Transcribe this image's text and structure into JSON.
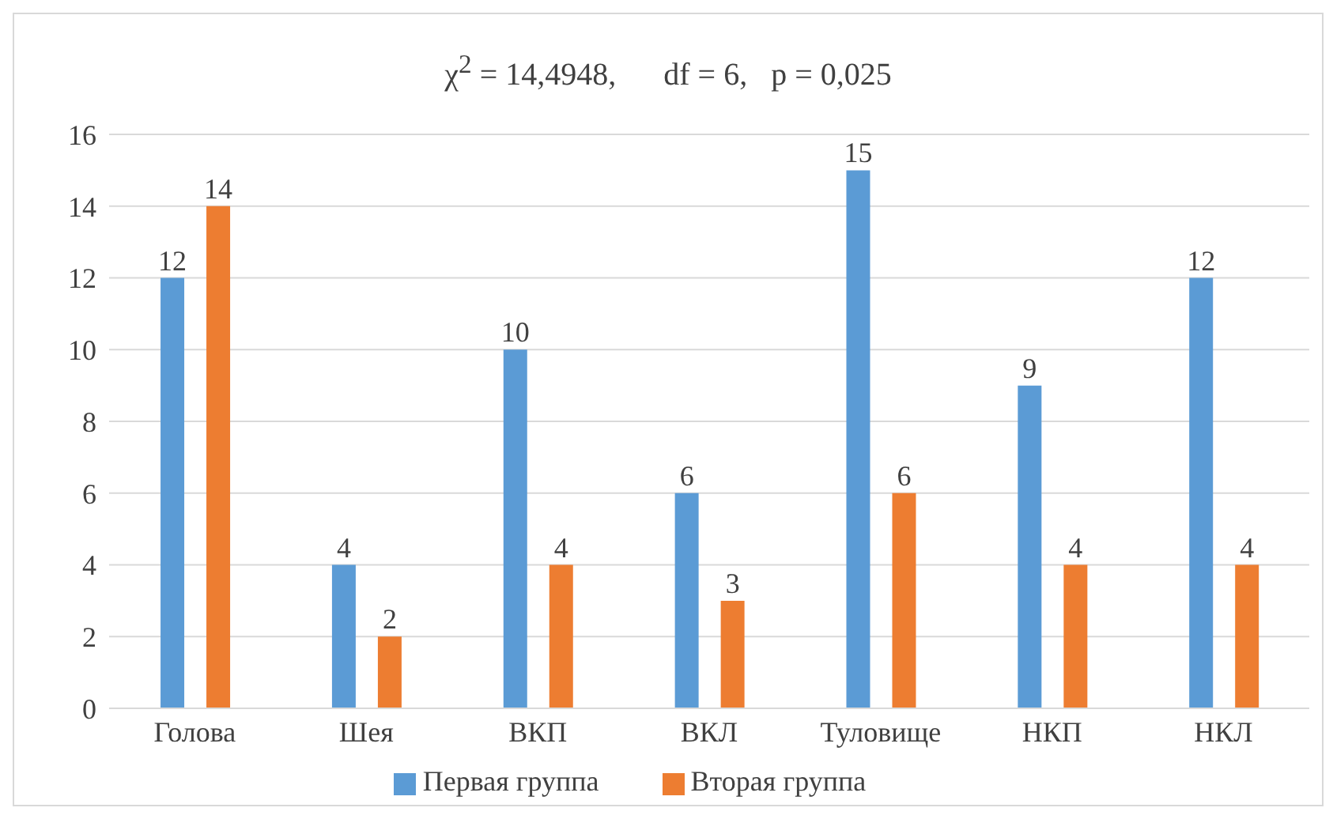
{
  "chart_data": {
    "type": "bar",
    "title": "χ$^{2}$ = 14,4948,      df = 6,   p = 0,025",
    "categories": [
      "Голова",
      "Шея",
      "ВКП",
      "ВКЛ",
      "Туловище",
      "НКП",
      "НКЛ"
    ],
    "series": [
      {
        "name": "Первая группа",
        "color": "#5b9bd5",
        "values": [
          12,
          4,
          10,
          6,
          15,
          9,
          12
        ]
      },
      {
        "name": "Вторая группа",
        "color": "#ed7d31",
        "values": [
          14,
          2,
          4,
          3,
          6,
          4,
          4
        ]
      }
    ],
    "ylim": [
      0,
      16
    ],
    "yticks": [
      0,
      2,
      4,
      6,
      8,
      10,
      12,
      14,
      16
    ],
    "grid": "y",
    "legend": "bottom",
    "data_labels": true
  }
}
